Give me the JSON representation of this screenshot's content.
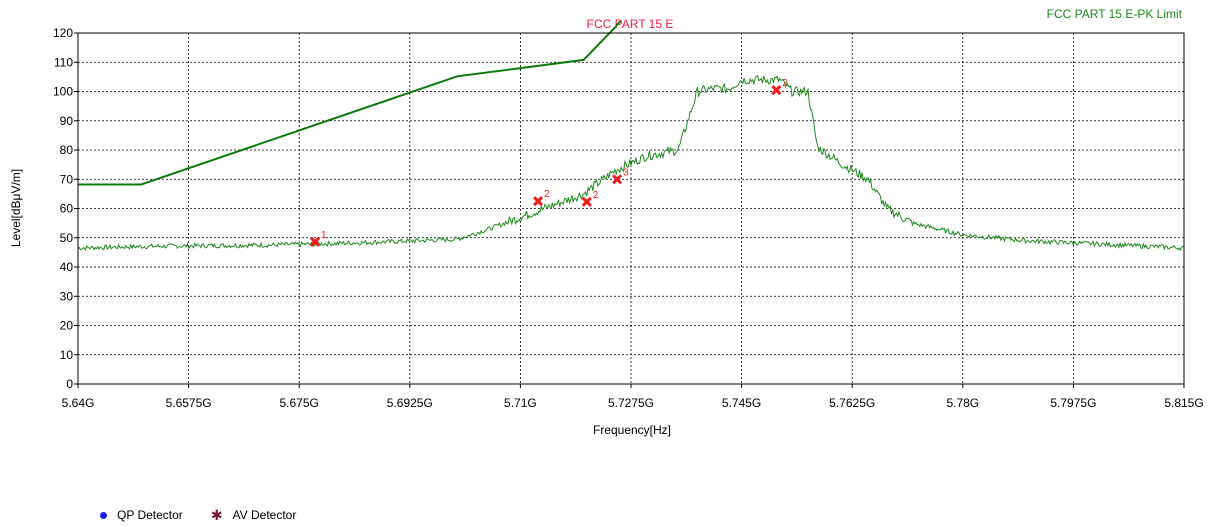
{
  "chart_data": {
    "type": "line",
    "title_center": "FCC PART 15 E",
    "title_right": "FCC PART 15 E-PK Limit",
    "xlabel": "Frequency[Hz]",
    "ylabel": "Level[dBμV/m]",
    "xlim": [
      5.64,
      5.815
    ],
    "ylim": [
      0,
      120
    ],
    "grid": true,
    "x_tick_labels": [
      "5.64G",
      "5.6575G",
      "5.675G",
      "5.6925G",
      "5.71G",
      "5.7275G",
      "5.745G",
      "5.7625G",
      "5.78G",
      "5.7975G",
      "5.815G"
    ],
    "x_ticks": [
      5.64,
      5.6575,
      5.675,
      5.6925,
      5.71,
      5.7275,
      5.745,
      5.7625,
      5.78,
      5.7975,
      5.815
    ],
    "y_ticks": [
      0,
      10,
      20,
      30,
      40,
      50,
      60,
      70,
      80,
      90,
      100,
      110,
      120
    ],
    "series": [
      {
        "kind": "limit",
        "x": [
          5.64,
          5.65,
          5.7,
          5.72,
          5.725,
          5.728
        ],
        "y": [
          68.2,
          68.2,
          105.2,
          110.8,
          122,
          130
        ]
      },
      {
        "kind": "measurement",
        "x": [
          5.64,
          5.65,
          5.66,
          5.67,
          5.68,
          5.69,
          5.7,
          5.705,
          5.71,
          5.715,
          5.72,
          5.725,
          5.73,
          5.735,
          5.738,
          5.7405,
          5.743,
          5.745,
          5.748,
          5.751,
          5.753,
          5.7555,
          5.757,
          5.761,
          5.765,
          5.768,
          5.772,
          5.78,
          5.79,
          5.8,
          5.815
        ],
        "y": [
          46.5,
          47,
          47.3,
          47.5,
          48,
          48.7,
          49.5,
          53,
          57,
          61,
          65,
          73,
          78,
          80,
          100,
          101,
          101,
          104,
          104,
          104,
          100,
          100,
          81,
          75,
          70,
          60,
          55,
          51,
          49,
          48,
          46.5
        ]
      }
    ],
    "markers": [
      {
        "label": "1",
        "x": 5.6775,
        "y": 48.6
      },
      {
        "label": "2",
        "x": 5.7128,
        "y": 62.5
      },
      {
        "label": "2",
        "x": 5.7205,
        "y": 62.3
      },
      {
        "label": "3",
        "x": 5.7253,
        "y": 70
      },
      {
        "label": "2",
        "x": 5.7505,
        "y": 100.5
      }
    ],
    "legend": [
      {
        "label": "QP Detector",
        "color": "#1a1aff",
        "symbol": "dot"
      },
      {
        "label": "AV Detector",
        "color": "#7a1a3a",
        "symbol": "star"
      }
    ],
    "colors": {
      "limit": "#0a7a0a",
      "measurement": "#1e8a1e",
      "marker": "#ee1c1c",
      "title_center": "#ee2244",
      "title_right": "#1a8a1a"
    }
  }
}
